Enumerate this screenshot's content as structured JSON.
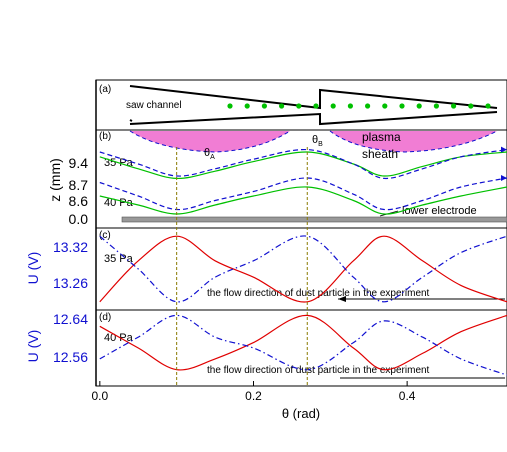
{
  "colors": {
    "axis": "#000000",
    "red": "#e00000",
    "blue": "#1010d0",
    "green": "#00c000",
    "guide": "#8a7a00",
    "pink": "#ee66cc",
    "electrode": "#999999"
  },
  "chart_data": [
    {
      "type": "diagram",
      "panel": "(a)",
      "labels": [
        "saw channel"
      ],
      "dust_particle_count": 16
    },
    {
      "type": "line",
      "panel": "(b)",
      "ylabel": "z (mm)",
      "yticks": [
        "9.4",
        "8.7",
        "8.6",
        "0.0"
      ],
      "annotations": [
        "plasma",
        "sheath",
        "lower electrode",
        "35 Pa",
        "40 Pa"
      ],
      "markers": [
        {
          "label": "θ",
          "sub": "A",
          "x": 0.1
        },
        {
          "label": "θ",
          "sub": "B",
          "x": 0.27
        }
      ],
      "series": [
        {
          "name": "35 Pa",
          "color": "green",
          "style": "solid",
          "x": [
            0.0,
            0.05,
            0.1,
            0.15,
            0.2,
            0.27,
            0.33,
            0.37,
            0.42,
            0.47,
            0.53
          ],
          "y": [
            9.43,
            9.38,
            9.34,
            9.37,
            9.41,
            9.45,
            9.4,
            9.35,
            9.39,
            9.43,
            9.45
          ]
        },
        {
          "name": "",
          "color": "blue",
          "style": "dashed",
          "x": [
            0.0,
            0.05,
            0.1,
            0.15,
            0.2,
            0.27,
            0.33,
            0.37,
            0.42,
            0.47,
            0.53
          ],
          "y": [
            9.45,
            9.4,
            9.35,
            9.38,
            9.42,
            9.46,
            9.4,
            9.34,
            9.38,
            9.43,
            9.46
          ]
        },
        {
          "name": "40 Pa",
          "color": "green",
          "style": "solid",
          "x": [
            0.0,
            0.05,
            0.1,
            0.15,
            0.2,
            0.27,
            0.33,
            0.37,
            0.42,
            0.47,
            0.53
          ],
          "y": [
            8.67,
            8.66,
            8.65,
            8.66,
            8.67,
            8.68,
            8.665,
            8.65,
            8.66,
            8.67,
            8.68
          ]
        },
        {
          "name": "",
          "color": "blue",
          "style": "dashed",
          "x": [
            0.0,
            0.05,
            0.1,
            0.15,
            0.2,
            0.27,
            0.33,
            0.37,
            0.42,
            0.47,
            0.53
          ],
          "y": [
            8.685,
            8.67,
            8.655,
            8.665,
            8.675,
            8.69,
            8.672,
            8.655,
            8.665,
            8.68,
            8.69
          ]
        }
      ]
    },
    {
      "type": "line",
      "panel": "(c)",
      "ylabel": "U (V)",
      "yticks": [
        "13.32",
        "13.26"
      ],
      "ylim": [
        13.24,
        13.34
      ],
      "annotations": [
        "35 Pa",
        "the flow direction of dust particle in the experiment"
      ],
      "series": [
        {
          "name": "",
          "color": "red",
          "style": "solid",
          "x": [
            0.0,
            0.05,
            0.1,
            0.15,
            0.2,
            0.27,
            0.33,
            0.37,
            0.42,
            0.47,
            0.53
          ],
          "y": [
            13.25,
            13.3,
            13.33,
            13.3,
            13.28,
            13.25,
            13.3,
            13.33,
            13.3,
            13.27,
            13.25
          ]
        },
        {
          "name": "",
          "color": "blue",
          "style": "dashdot",
          "x": [
            0.0,
            0.05,
            0.1,
            0.15,
            0.2,
            0.27,
            0.33,
            0.37,
            0.42,
            0.47,
            0.53
          ],
          "y": [
            13.33,
            13.29,
            13.25,
            13.28,
            13.3,
            13.33,
            13.28,
            13.25,
            13.28,
            13.31,
            13.33
          ]
        }
      ]
    },
    {
      "type": "line",
      "panel": "(d)",
      "ylabel": "U (V)",
      "yticks": [
        "12.64",
        "12.56"
      ],
      "ylim": [
        12.53,
        12.67
      ],
      "xlabel": "θ (rad)",
      "xticks": [
        "0.0",
        "0.2",
        "0.4"
      ],
      "xlim": [
        -0.005,
        0.53
      ],
      "annotations": [
        "40 Pa",
        "the flow direction of dust particle in the experiment"
      ],
      "series": [
        {
          "name": "",
          "color": "red",
          "style": "solid",
          "x": [
            0.0,
            0.05,
            0.1,
            0.15,
            0.2,
            0.27,
            0.33,
            0.37,
            0.42,
            0.47,
            0.53
          ],
          "y": [
            12.64,
            12.6,
            12.56,
            12.58,
            12.61,
            12.66,
            12.6,
            12.56,
            12.59,
            12.63,
            12.66
          ]
        },
        {
          "name": "",
          "color": "blue",
          "style": "dashdot",
          "x": [
            0.0,
            0.05,
            0.1,
            0.15,
            0.2,
            0.27,
            0.33,
            0.37,
            0.42,
            0.47,
            0.53
          ],
          "y": [
            12.58,
            12.62,
            12.66,
            12.62,
            12.6,
            12.56,
            12.61,
            12.65,
            12.62,
            12.58,
            12.55
          ]
        }
      ]
    }
  ]
}
